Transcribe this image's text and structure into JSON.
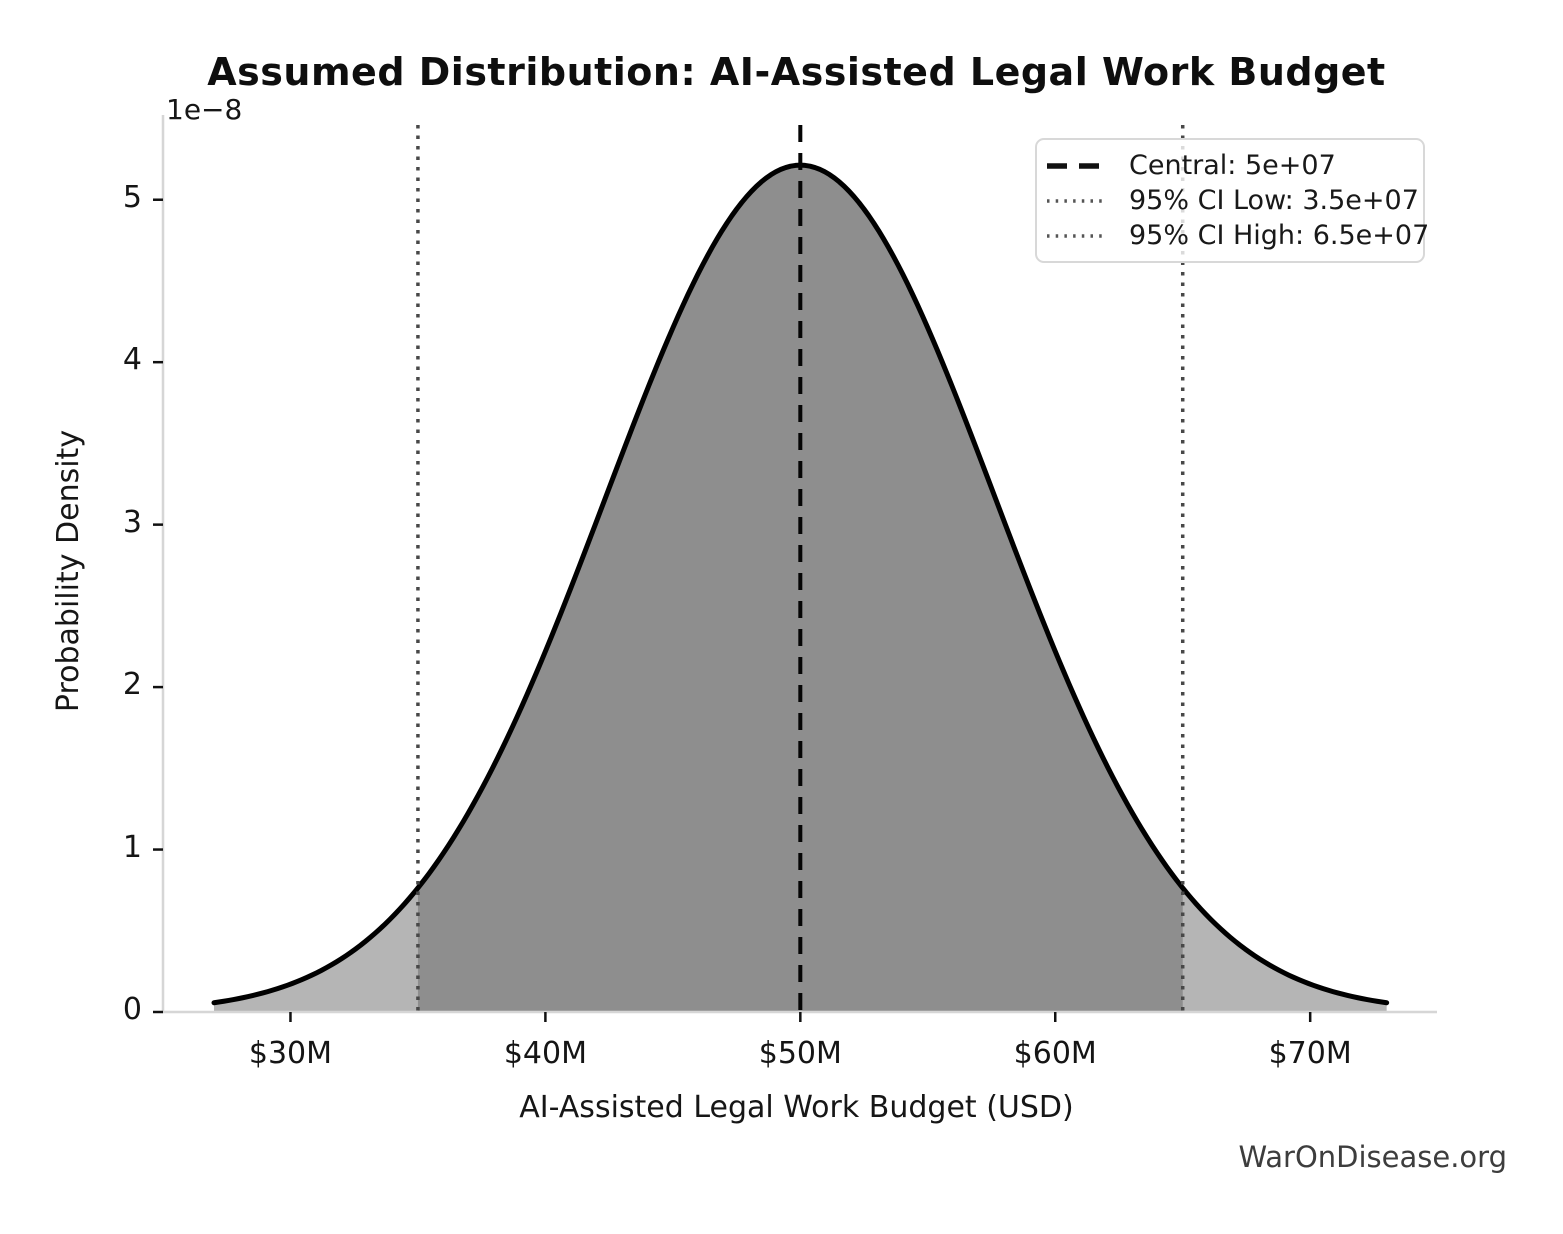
{
  "figure": {
    "title": "Assumed Distribution: AI-Assisted Legal Work Budget",
    "watermark": "WarOnDisease.org"
  },
  "axes": {
    "x_label": "AI-Assisted Legal Work Budget (USD)",
    "y_label": "Probability Density",
    "y_offset_text": "1e−8",
    "x_ticks": [
      {
        "value": 30000000,
        "label": "$30M"
      },
      {
        "value": 40000000,
        "label": "$40M"
      },
      {
        "value": 50000000,
        "label": "$50M"
      },
      {
        "value": 60000000,
        "label": "$60M"
      },
      {
        "value": 70000000,
        "label": "$70M"
      }
    ],
    "y_ticks": [
      {
        "value": 0,
        "label": "0"
      },
      {
        "value": 1e-08,
        "label": "1"
      },
      {
        "value": 2e-08,
        "label": "2"
      },
      {
        "value": 3e-08,
        "label": "3"
      },
      {
        "value": 4e-08,
        "label": "4"
      },
      {
        "value": 5e-08,
        "label": "5"
      }
    ]
  },
  "legend": {
    "entries": [
      {
        "label": "Central: 5e+07",
        "style": "dashed",
        "color": "#111111"
      },
      {
        "label": "95% CI Low: 3.5e+07",
        "style": "dotted",
        "color": "#555555"
      },
      {
        "label": "95% CI High: 6.5e+07",
        "style": "dotted",
        "color": "#555555"
      }
    ]
  },
  "chart_data": {
    "type": "area",
    "title": "Assumed Distribution: AI-Assisted Legal Work Budget",
    "xlabel": "AI-Assisted Legal Work Budget (USD)",
    "ylabel": "Probability Density",
    "distribution": "normal",
    "mean": 50000000,
    "sigma": 7653061,
    "peak_density": 5.21e-08,
    "central": 50000000,
    "ci_low": 35000000,
    "ci_high": 65000000,
    "ci_level": "95%",
    "curve_domain": [
      27000000,
      73000000
    ],
    "xlim": [
      25000000,
      74700000
    ],
    "ylim": [
      0,
      5.46e-08
    ],
    "y_scale_factor": 1e-08,
    "grid": false,
    "legend_position": "upper right",
    "colors": {
      "curve": "#000000",
      "fill_tail": "#b5b5b5",
      "fill_ci": "#8e8e8e",
      "central_line": "#050505",
      "ci_line": "#484848",
      "spine": "#d6d6d6",
      "tick": "#111111",
      "watermark": "#3d3d3d"
    }
  }
}
